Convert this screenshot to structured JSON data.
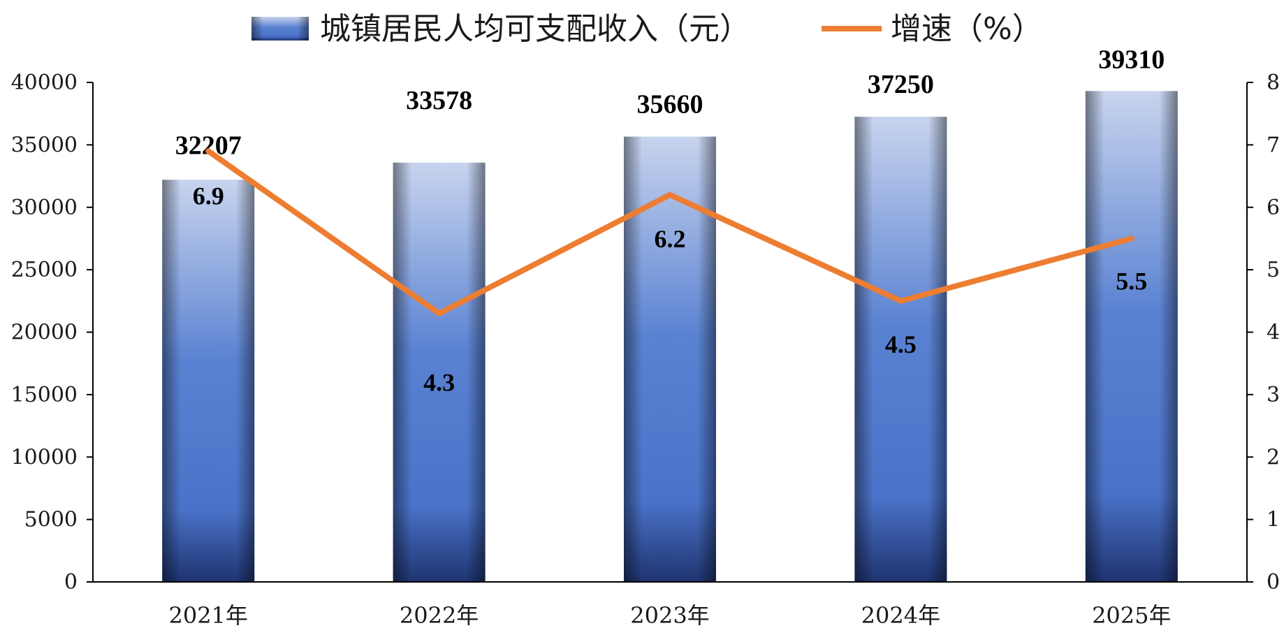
{
  "chart_data": {
    "type": "bar",
    "categories": [
      "2021年",
      "2022年",
      "2023年",
      "2024年",
      "2025年"
    ],
    "series": [
      {
        "name": "城镇居民人均可支配收入（元）",
        "type": "bar",
        "axis": "left",
        "values": [
          32207,
          33578,
          35660,
          37250,
          39310
        ]
      },
      {
        "name": "增速（%）",
        "type": "line",
        "axis": "right",
        "values": [
          6.9,
          4.3,
          6.2,
          4.5,
          5.5
        ]
      }
    ],
    "bar_labels": [
      "32207",
      "33578",
      "35660",
      "37250",
      "39310"
    ],
    "line_labels": [
      "6.9",
      "4.3",
      "6.2",
      "4.5",
      "5.5"
    ],
    "y_left": {
      "min": 0,
      "max": 40000,
      "ticks": [
        "0",
        "5000",
        "10000",
        "15000",
        "20000",
        "25000",
        "30000",
        "35000",
        "40000"
      ]
    },
    "y_right": {
      "min": 0,
      "max": 8,
      "ticks": [
        "0",
        "1",
        "2",
        "3",
        "4",
        "5",
        "6",
        "7",
        "8"
      ]
    },
    "legend_position": "top-center",
    "grid": false,
    "colors": {
      "bar_light": "#c8d4ee",
      "bar_mid": "#4a72c8",
      "bar_dark": "#1f3470",
      "line": "#ed7d31",
      "axis": "#000000"
    }
  }
}
